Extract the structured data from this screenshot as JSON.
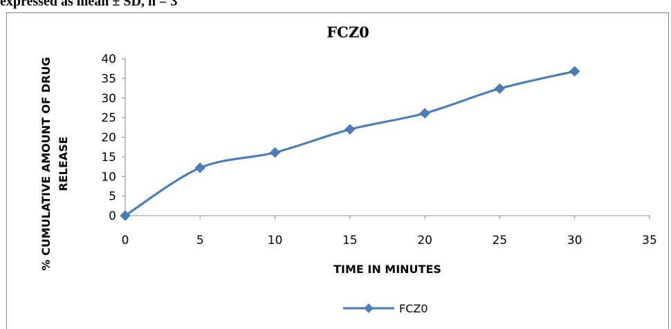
{
  "caption": "expressed as mean ± SD, n = 3",
  "chart_data": {
    "type": "line",
    "title": "FCZ0",
    "xlabel": "TIME IN MINUTES",
    "ylabel_lines": [
      "% CUMULATIVE AMOUNT OF DRUG",
      "RELEASE"
    ],
    "x": [
      0,
      5,
      10,
      15,
      20,
      25,
      30
    ],
    "series": [
      {
        "name": "FCZ0",
        "values": [
          0,
          12.2,
          16.1,
          22.0,
          26.1,
          32.4,
          36.8
        ]
      }
    ],
    "xlim": [
      0,
      35
    ],
    "ylim": [
      0,
      40
    ],
    "xticks": [
      0,
      5,
      10,
      15,
      20,
      25,
      30,
      35
    ],
    "yticks": [
      0,
      5,
      10,
      15,
      20,
      25,
      30,
      35,
      40
    ],
    "grid": false,
    "legend_position": "bottom",
    "colors": {
      "series": "#4a7ebb"
    }
  }
}
